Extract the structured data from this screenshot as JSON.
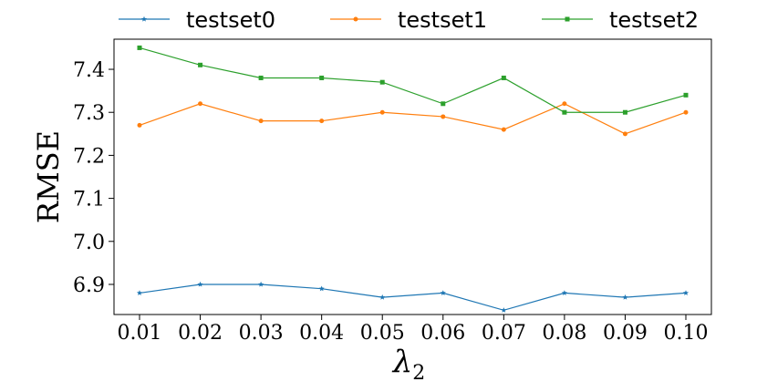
{
  "chart_data": {
    "type": "line",
    "title": "",
    "xlabel": "λ",
    "xlabel_subscript": "2",
    "ylabel": "RMSE",
    "x": [
      0.01,
      0.02,
      0.03,
      0.04,
      0.05,
      0.06,
      0.07,
      0.08,
      0.09,
      0.1
    ],
    "x_tick_labels": [
      "0.01",
      "0.02",
      "0.03",
      "0.04",
      "0.05",
      "0.06",
      "0.07",
      "0.08",
      "0.09",
      "0.10"
    ],
    "y_ticks": [
      6.9,
      7.0,
      7.1,
      7.2,
      7.3,
      7.4
    ],
    "y_tick_labels": [
      "6.9",
      "7.0",
      "7.1",
      "7.2",
      "7.3",
      "7.4"
    ],
    "ylim": [
      6.83,
      7.47
    ],
    "grid": false,
    "legend_position": "top",
    "series": [
      {
        "name": "testset0",
        "color": "#1f77b4",
        "marker": "star",
        "values": [
          6.88,
          6.9,
          6.9,
          6.89,
          6.87,
          6.88,
          6.84,
          6.88,
          6.87,
          6.88
        ]
      },
      {
        "name": "testset1",
        "color": "#ff7f0e",
        "marker": "circle",
        "values": [
          7.27,
          7.32,
          7.28,
          7.28,
          7.3,
          7.29,
          7.26,
          7.32,
          7.25,
          7.3
        ]
      },
      {
        "name": "testset2",
        "color": "#2ca02c",
        "marker": "square",
        "values": [
          7.45,
          7.41,
          7.38,
          7.38,
          7.37,
          7.32,
          7.38,
          7.3,
          7.3,
          7.34
        ]
      }
    ]
  }
}
